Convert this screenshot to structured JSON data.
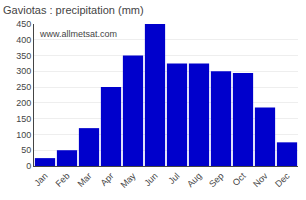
{
  "chart_data": {
    "type": "bar",
    "title": "Gaviotas : precipitation (mm)",
    "categories": [
      "Jan",
      "Feb",
      "Mar",
      "Apr",
      "May",
      "Jun",
      "Jul",
      "Aug",
      "Sep",
      "Oct",
      "Nov",
      "Dec"
    ],
    "values": [
      25,
      50,
      120,
      250,
      350,
      450,
      325,
      325,
      300,
      295,
      185,
      75
    ],
    "color": "#0000cc",
    "ylim": [
      0,
      450
    ],
    "yticks": [
      0,
      50,
      100,
      150,
      200,
      250,
      300,
      350,
      400,
      450
    ],
    "grid": true,
    "annotations": [
      "www.allmetsat.com"
    ]
  }
}
